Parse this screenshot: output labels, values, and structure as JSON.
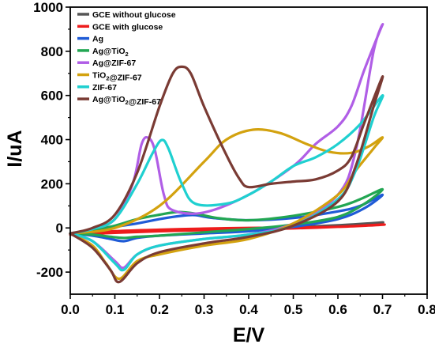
{
  "chart_data": {
    "type": "line",
    "xlabel": "E/V",
    "ylabel": "I/uA",
    "xlim": [
      0.0,
      0.8
    ],
    "ylim": [
      -300,
      1000
    ],
    "xticks": [
      "0.0",
      "0.1",
      "0.2",
      "0.3",
      "0.4",
      "0.5",
      "0.6",
      "0.7",
      "0.8"
    ],
    "yticks": [
      "-200",
      "0",
      "200",
      "400",
      "600",
      "800",
      "1000"
    ],
    "xtick_values": [
      0.0,
      0.1,
      0.2,
      0.3,
      0.4,
      0.5,
      0.6,
      0.7,
      0.8
    ],
    "ytick_values": [
      -200,
      0,
      200,
      400,
      600,
      800,
      1000
    ],
    "grid": false,
    "legend_position": "top-left",
    "series": [
      {
        "name": "GCE without glucose",
        "legend_parts": [
          {
            "t": "GCE without glucose"
          }
        ],
        "color": "#555555",
        "points": [
          [
            0.0,
            -28
          ],
          [
            0.1,
            -20
          ],
          [
            0.2,
            -12
          ],
          [
            0.3,
            -8
          ],
          [
            0.4,
            -5
          ],
          [
            0.5,
            0
          ],
          [
            0.6,
            8
          ],
          [
            0.65,
            14
          ],
          [
            0.7,
            25
          ],
          [
            0.68,
            22
          ],
          [
            0.6,
            12
          ],
          [
            0.5,
            4
          ],
          [
            0.4,
            -2
          ],
          [
            0.3,
            -6
          ],
          [
            0.2,
            -10
          ],
          [
            0.1,
            -18
          ],
          [
            0.0,
            -28
          ]
        ]
      },
      {
        "name": "GCE with glucose",
        "legend_parts": [
          {
            "t": "GCE with glucose"
          }
        ],
        "color": "#ee1c1c",
        "points": [
          [
            0.0,
            -30
          ],
          [
            0.1,
            -22
          ],
          [
            0.2,
            -15
          ],
          [
            0.3,
            -10
          ],
          [
            0.4,
            -7
          ],
          [
            0.5,
            -2
          ],
          [
            0.6,
            5
          ],
          [
            0.7,
            15
          ],
          [
            0.68,
            12
          ],
          [
            0.6,
            5
          ],
          [
            0.5,
            2
          ],
          [
            0.4,
            0
          ],
          [
            0.3,
            -3
          ],
          [
            0.2,
            -8
          ],
          [
            0.1,
            -15
          ],
          [
            0.0,
            -30
          ]
        ]
      },
      {
        "name": "Ag",
        "legend_parts": [
          {
            "t": "Ag"
          }
        ],
        "color": "#1f5bd6",
        "points": [
          [
            0.0,
            -25
          ],
          [
            0.05,
            -10
          ],
          [
            0.1,
            5
          ],
          [
            0.15,
            20
          ],
          [
            0.2,
            40
          ],
          [
            0.25,
            55
          ],
          [
            0.28,
            58
          ],
          [
            0.32,
            45
          ],
          [
            0.4,
            35
          ],
          [
            0.5,
            45
          ],
          [
            0.6,
            75
          ],
          [
            0.65,
            100
          ],
          [
            0.7,
            150
          ],
          [
            0.66,
            90
          ],
          [
            0.6,
            40
          ],
          [
            0.5,
            5
          ],
          [
            0.4,
            -15
          ],
          [
            0.3,
            -25
          ],
          [
            0.2,
            -35
          ],
          [
            0.15,
            -45
          ],
          [
            0.12,
            -60
          ],
          [
            0.09,
            -50
          ],
          [
            0.05,
            -35
          ],
          [
            0.0,
            -25
          ]
        ]
      },
      {
        "name": "Ag@TiO₂",
        "legend_parts": [
          {
            "t": "Ag@TiO"
          },
          {
            "t": "2",
            "sub": true
          }
        ],
        "color": "#22a653",
        "points": [
          [
            0.0,
            -25
          ],
          [
            0.05,
            -10
          ],
          [
            0.1,
            10
          ],
          [
            0.15,
            40
          ],
          [
            0.2,
            60
          ],
          [
            0.24,
            72
          ],
          [
            0.28,
            65
          ],
          [
            0.33,
            45
          ],
          [
            0.4,
            35
          ],
          [
            0.5,
            55
          ],
          [
            0.6,
            95
          ],
          [
            0.65,
            130
          ],
          [
            0.7,
            175
          ],
          [
            0.66,
            110
          ],
          [
            0.6,
            50
          ],
          [
            0.5,
            15
          ],
          [
            0.4,
            -5
          ],
          [
            0.3,
            -20
          ],
          [
            0.2,
            -35
          ],
          [
            0.15,
            -40
          ],
          [
            0.12,
            -45
          ],
          [
            0.09,
            -40
          ],
          [
            0.05,
            -30
          ],
          [
            0.0,
            -25
          ]
        ]
      },
      {
        "name": "Ag@ZIF-67",
        "legend_parts": [
          {
            "t": "Ag@ZIF-67"
          }
        ],
        "color": "#b05ee6",
        "points": [
          [
            0.0,
            -25
          ],
          [
            0.05,
            -5
          ],
          [
            0.1,
            40
          ],
          [
            0.14,
            200
          ],
          [
            0.16,
            380
          ],
          [
            0.175,
            408
          ],
          [
            0.19,
            350
          ],
          [
            0.21,
            150
          ],
          [
            0.23,
            80
          ],
          [
            0.3,
            70
          ],
          [
            0.4,
            150
          ],
          [
            0.5,
            280
          ],
          [
            0.55,
            380
          ],
          [
            0.6,
            460
          ],
          [
            0.63,
            550
          ],
          [
            0.66,
            720
          ],
          [
            0.7,
            920
          ],
          [
            0.68,
            800
          ],
          [
            0.64,
            350
          ],
          [
            0.6,
            150
          ],
          [
            0.5,
            20
          ],
          [
            0.4,
            -30
          ],
          [
            0.3,
            -50
          ],
          [
            0.2,
            -80
          ],
          [
            0.15,
            -120
          ],
          [
            0.12,
            -180
          ],
          [
            0.1,
            -150
          ],
          [
            0.05,
            -60
          ],
          [
            0.0,
            -25
          ]
        ]
      },
      {
        "name": "TiO₂@ZIF-67",
        "legend_parts": [
          {
            "t": "TiO"
          },
          {
            "t": "2",
            "sub": true
          },
          {
            "t": "@ZIF-67"
          }
        ],
        "color": "#d3a20f",
        "points": [
          [
            0.0,
            -25
          ],
          [
            0.1,
            0
          ],
          [
            0.2,
            100
          ],
          [
            0.3,
            300
          ],
          [
            0.35,
            400
          ],
          [
            0.41,
            445
          ],
          [
            0.47,
            430
          ],
          [
            0.53,
            380
          ],
          [
            0.58,
            345
          ],
          [
            0.63,
            340
          ],
          [
            0.67,
            370
          ],
          [
            0.7,
            410
          ],
          [
            0.68,
            360
          ],
          [
            0.64,
            260
          ],
          [
            0.6,
            150
          ],
          [
            0.5,
            20
          ],
          [
            0.4,
            -50
          ],
          [
            0.3,
            -80
          ],
          [
            0.2,
            -120
          ],
          [
            0.15,
            -150
          ],
          [
            0.11,
            -230
          ],
          [
            0.08,
            -160
          ],
          [
            0.05,
            -80
          ],
          [
            0.0,
            -25
          ]
        ]
      },
      {
        "name": "ZIF-67",
        "legend_parts": [
          {
            "t": "ZIF-67"
          }
        ],
        "color": "#1fd0d0",
        "points": [
          [
            0.0,
            -25
          ],
          [
            0.05,
            -5
          ],
          [
            0.1,
            40
          ],
          [
            0.15,
            200
          ],
          [
            0.185,
            340
          ],
          [
            0.205,
            398
          ],
          [
            0.22,
            360
          ],
          [
            0.25,
            200
          ],
          [
            0.28,
            110
          ],
          [
            0.35,
            110
          ],
          [
            0.4,
            150
          ],
          [
            0.45,
            210
          ],
          [
            0.5,
            280
          ],
          [
            0.55,
            320
          ],
          [
            0.6,
            380
          ],
          [
            0.65,
            470
          ],
          [
            0.7,
            600
          ],
          [
            0.68,
            500
          ],
          [
            0.64,
            260
          ],
          [
            0.6,
            130
          ],
          [
            0.5,
            10
          ],
          [
            0.4,
            -30
          ],
          [
            0.3,
            -50
          ],
          [
            0.2,
            -80
          ],
          [
            0.15,
            -120
          ],
          [
            0.12,
            -190
          ],
          [
            0.1,
            -160
          ],
          [
            0.05,
            -60
          ],
          [
            0.0,
            -25
          ]
        ]
      },
      {
        "name": "Ag@TiO₂@ZIF-67",
        "legend_parts": [
          {
            "t": "Ag@TiO"
          },
          {
            "t": "2",
            "sub": true
          },
          {
            "t": "@ZIF-67"
          }
        ],
        "color": "#7a3b34",
        "points": [
          [
            0.0,
            -25
          ],
          [
            0.05,
            0
          ],
          [
            0.1,
            60
          ],
          [
            0.15,
            250
          ],
          [
            0.2,
            550
          ],
          [
            0.23,
            700
          ],
          [
            0.25,
            730
          ],
          [
            0.27,
            700
          ],
          [
            0.3,
            550
          ],
          [
            0.35,
            330
          ],
          [
            0.38,
            220
          ],
          [
            0.4,
            185
          ],
          [
            0.45,
            200
          ],
          [
            0.5,
            210
          ],
          [
            0.55,
            220
          ],
          [
            0.6,
            260
          ],
          [
            0.63,
            320
          ],
          [
            0.66,
            480
          ],
          [
            0.7,
            685
          ],
          [
            0.68,
            550
          ],
          [
            0.64,
            280
          ],
          [
            0.6,
            120
          ],
          [
            0.5,
            10
          ],
          [
            0.4,
            -40
          ],
          [
            0.3,
            -70
          ],
          [
            0.2,
            -110
          ],
          [
            0.15,
            -160
          ],
          [
            0.11,
            -245
          ],
          [
            0.09,
            -190
          ],
          [
            0.05,
            -90
          ],
          [
            0.0,
            -25
          ]
        ]
      }
    ]
  }
}
